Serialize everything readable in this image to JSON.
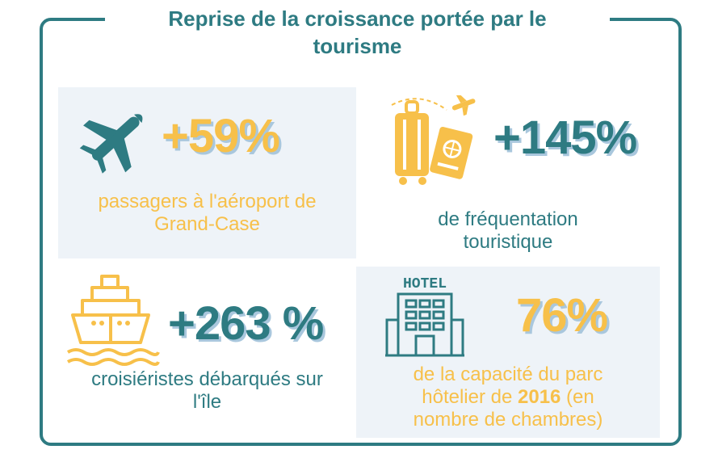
{
  "title": {
    "line1": "Reprise de la croissance portée par le",
    "line2": "tourisme"
  },
  "cards": {
    "airport": {
      "icon": "airplane-icon",
      "value": "+59%",
      "desc_line1": "passagers à l'aéroport de",
      "desc_line2": "Grand-Case"
    },
    "tourism": {
      "icon": "luggage-passport-icon",
      "value": "+145%",
      "desc_line1": "de fréquentation",
      "desc_line2": "touristique"
    },
    "cruise": {
      "icon": "cruise-ship-icon",
      "value": "+263 %",
      "desc_line1": "croisiéristes débarqués sur",
      "desc_line2": "l'île"
    },
    "hotel": {
      "icon": "hotel-icon",
      "icon_label": "HOTEL",
      "value": "76%",
      "desc_line1": "de la capacité du parc",
      "desc_line2a": "hôtelier de ",
      "desc_year": "2016",
      "desc_line2b": " (en",
      "desc_line3": "nombre de chambres)"
    }
  },
  "colors": {
    "teal": "#2e7b82",
    "yellow": "#f7c04a",
    "panel_bg": "#eef3f8",
    "shadow": "#a9c7dd"
  }
}
